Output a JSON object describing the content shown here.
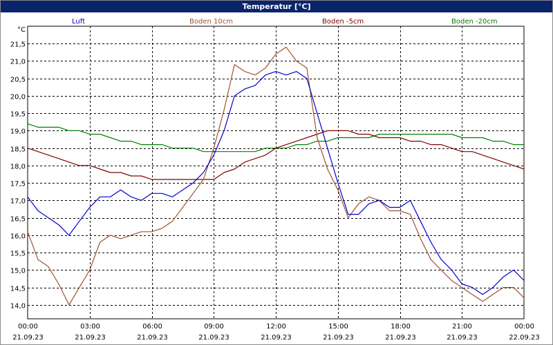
{
  "window": {
    "title": "Temperatur [°C]"
  },
  "colors": {
    "Luft": "#0000cc",
    "Boden 10cm": "#a0522d",
    "Boden -5cm": "#800000",
    "Boden -20cm": "#008000",
    "grid": "#000000"
  },
  "chart_data": {
    "type": "line",
    "title": "Temperatur [°C]",
    "ylabel": "°C",
    "xlabel": "",
    "ylim": [
      13.6,
      22.0
    ],
    "xlim": [
      "21.09.23 00:00",
      "22.09.23 00:00"
    ],
    "y_ticks": [
      "14,0",
      "14,5",
      "15,0",
      "15,5",
      "16,0",
      "16,5",
      "17,0",
      "17,5",
      "18,0",
      "18,5",
      "19,0",
      "19,5",
      "20,0",
      "20,5",
      "21,0",
      "21,5"
    ],
    "y_tick_values": [
      14.0,
      14.5,
      15.0,
      15.5,
      16.0,
      16.5,
      17.0,
      17.5,
      18.0,
      18.5,
      19.0,
      19.5,
      20.0,
      20.5,
      21.0,
      21.5
    ],
    "x_ticks": [
      {
        "time": "00:00",
        "date": "21.09.23"
      },
      {
        "time": "03:00",
        "date": "21.09.23"
      },
      {
        "time": "06:00",
        "date": "21.09.23"
      },
      {
        "time": "09:00",
        "date": "21.09.23"
      },
      {
        "time": "12:00",
        "date": "21.09.23"
      },
      {
        "time": "15:00",
        "date": "21.09.23"
      },
      {
        "time": "18:00",
        "date": "21.09.23"
      },
      {
        "time": "21:00",
        "date": "21.09.23"
      },
      {
        "time": "00:00",
        "date": "22.09.23"
      }
    ],
    "grid": true,
    "legend": "top",
    "x_hours": [
      0,
      0.5,
      1,
      1.5,
      2,
      2.5,
      3,
      3.5,
      4,
      4.5,
      5,
      5.5,
      6,
      6.5,
      7,
      7.5,
      8,
      8.5,
      9,
      9.5,
      10,
      10.5,
      11,
      11.5,
      12,
      12.5,
      13,
      13.5,
      14,
      14.5,
      15,
      15.5,
      16,
      16.5,
      17,
      17.5,
      18,
      18.5,
      19,
      19.5,
      20,
      20.5,
      21,
      21.5,
      22,
      22.5,
      23,
      23.5,
      24
    ],
    "series": [
      {
        "name": "Luft",
        "values": [
          17.1,
          16.7,
          16.5,
          16.3,
          16.0,
          16.4,
          16.8,
          17.1,
          17.1,
          17.3,
          17.1,
          17.0,
          17.2,
          17.2,
          17.1,
          17.3,
          17.5,
          17.8,
          18.3,
          19.0,
          20.0,
          20.2,
          20.3,
          20.6,
          20.7,
          20.6,
          20.7,
          20.5,
          19.5,
          18.5,
          17.5,
          16.6,
          16.6,
          16.9,
          17.0,
          16.8,
          16.8,
          17.0,
          16.4,
          15.8,
          15.3,
          15.0,
          14.6,
          14.5,
          14.3,
          14.5,
          14.8,
          15.0,
          14.7
        ]
      },
      {
        "name": "Boden 10cm",
        "values": [
          16.1,
          15.3,
          15.1,
          14.6,
          14.0,
          14.5,
          15.0,
          15.8,
          16.0,
          15.9,
          16.0,
          16.1,
          16.1,
          16.2,
          16.4,
          16.8,
          17.2,
          17.6,
          18.5,
          19.6,
          20.9,
          20.7,
          20.6,
          20.8,
          21.2,
          21.4,
          21.0,
          20.8,
          18.8,
          17.9,
          17.3,
          16.5,
          16.9,
          17.1,
          17.0,
          16.7,
          16.7,
          16.6,
          15.9,
          15.3,
          15.0,
          14.7,
          14.5,
          14.3,
          14.1,
          14.3,
          14.5,
          14.5,
          14.2
        ]
      },
      {
        "name": "Boden -5cm",
        "values": [
          18.5,
          18.4,
          18.3,
          18.2,
          18.1,
          18.0,
          18.0,
          17.9,
          17.8,
          17.8,
          17.7,
          17.7,
          17.6,
          17.6,
          17.6,
          17.6,
          17.6,
          17.6,
          17.6,
          17.8,
          17.9,
          18.1,
          18.2,
          18.3,
          18.5,
          18.6,
          18.7,
          18.8,
          18.9,
          19.0,
          19.0,
          19.0,
          18.9,
          18.9,
          18.8,
          18.8,
          18.8,
          18.7,
          18.7,
          18.6,
          18.6,
          18.5,
          18.4,
          18.4,
          18.3,
          18.2,
          18.1,
          18.0,
          17.9
        ]
      },
      {
        "name": "Boden -20cm",
        "values": [
          19.2,
          19.1,
          19.1,
          19.1,
          19.0,
          19.0,
          18.9,
          18.9,
          18.8,
          18.7,
          18.7,
          18.6,
          18.6,
          18.6,
          18.5,
          18.5,
          18.5,
          18.4,
          18.4,
          18.4,
          18.4,
          18.4,
          18.4,
          18.5,
          18.5,
          18.5,
          18.6,
          18.6,
          18.7,
          18.7,
          18.8,
          18.8,
          18.8,
          18.8,
          18.9,
          18.9,
          18.9,
          18.9,
          18.9,
          18.9,
          18.9,
          18.9,
          18.8,
          18.8,
          18.8,
          18.7,
          18.7,
          18.6,
          18.6
        ]
      }
    ]
  }
}
